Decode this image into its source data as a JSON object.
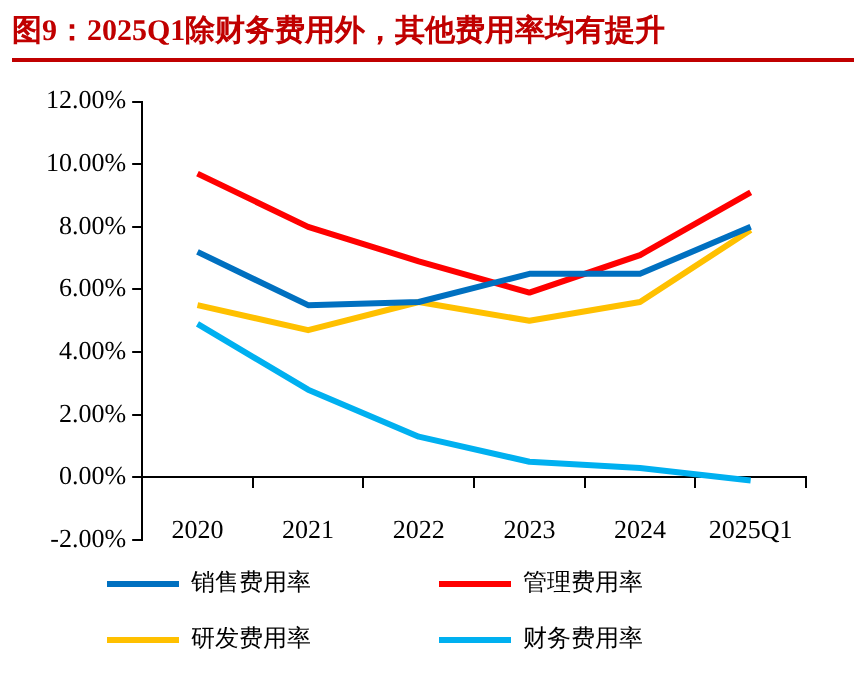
{
  "chart_data": {
    "type": "line",
    "title": "图9：2025Q1除财务费用外，其他费用率均有提升",
    "categories": [
      "2020",
      "2021",
      "2022",
      "2023",
      "2024",
      "2025Q1"
    ],
    "series": [
      {
        "name": "销售费用率",
        "color": "#0070c0",
        "values": [
          7.2,
          5.5,
          5.6,
          6.5,
          6.5,
          8.0
        ]
      },
      {
        "name": "管理费用率",
        "color": "#ff0000",
        "values": [
          9.7,
          8.0,
          6.9,
          5.9,
          7.1,
          9.1
        ]
      },
      {
        "name": "研发费用率",
        "color": "#ffc000",
        "values": [
          5.5,
          4.7,
          5.6,
          5.0,
          5.6,
          7.9
        ]
      },
      {
        "name": "财务费用率",
        "color": "#00b0f0",
        "values": [
          4.9,
          2.8,
          1.3,
          0.5,
          0.3,
          -0.1
        ]
      }
    ],
    "ylim": [
      -2,
      12
    ],
    "yticks": [
      {
        "value": -2,
        "label": "-2.00%"
      },
      {
        "value": 0,
        "label": "0.00%"
      },
      {
        "value": 2,
        "label": "2.00%"
      },
      {
        "value": 4,
        "label": "4.00%"
      },
      {
        "value": 6,
        "label": "6.00%"
      },
      {
        "value": 8,
        "label": "8.00%"
      },
      {
        "value": 10,
        "label": "10.00%"
      },
      {
        "value": 12,
        "label": "12.00%"
      }
    ],
    "grid": false,
    "legend": "bottom",
    "marker": "none",
    "line_style": "solid"
  }
}
